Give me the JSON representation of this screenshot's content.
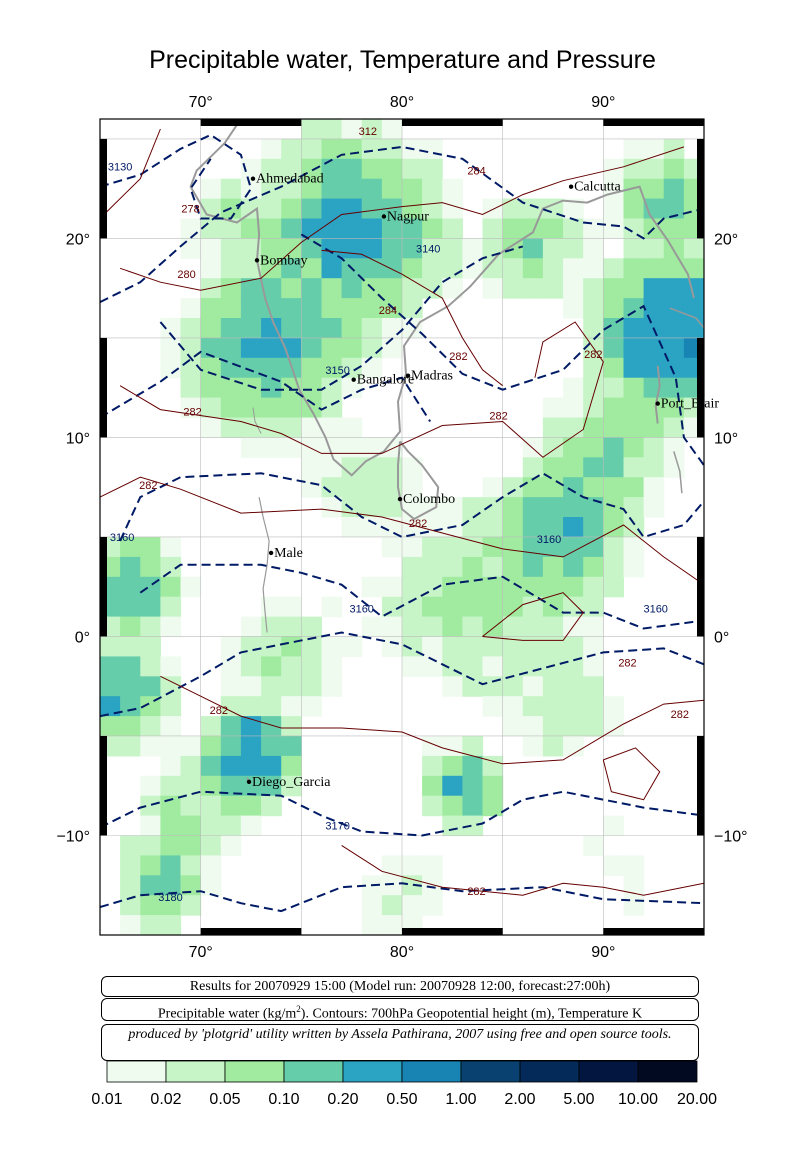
{
  "title": "Precipitable water, Temperature and Pressure",
  "map": {
    "lon_range": [
      65,
      95
    ],
    "lat_range": [
      -15,
      26
    ],
    "lon_ticks": [
      {
        "value": 70,
        "label": "70°"
      },
      {
        "value": 80,
        "label": "80°"
      },
      {
        "value": 90,
        "label": "90°"
      }
    ],
    "lat_ticks": [
      {
        "value": 20,
        "label": "20°"
      },
      {
        "value": 10,
        "label": "10°"
      },
      {
        "value": 0,
        "label": "0°"
      },
      {
        "value": -10,
        "label": "−10°"
      }
    ],
    "cities": [
      {
        "name": "Ahmedabad",
        "lon": 72.6,
        "lat": 23.0
      },
      {
        "name": "Nagpur",
        "lon": 79.1,
        "lat": 21.1
      },
      {
        "name": "Calcutta",
        "lon": 88.4,
        "lat": 22.6
      },
      {
        "name": "Bombay",
        "lon": 72.8,
        "lat": 18.9
      },
      {
        "name": "Madras",
        "lon": 80.3,
        "lat": 13.1
      },
      {
        "name": "Bangalore",
        "lon": 77.6,
        "lat": 12.9
      },
      {
        "name": "Port_Blair",
        "lon": 92.7,
        "lat": 11.7
      },
      {
        "name": "Colombo",
        "lon": 79.9,
        "lat": 6.9
      },
      {
        "name": "Male",
        "lon": 73.5,
        "lat": 4.2
      },
      {
        "name": "Diego_Garcia",
        "lon": 72.4,
        "lat": -7.3
      }
    ],
    "contour_labels": [
      {
        "text": "3130",
        "lon": 66.0,
        "lat": 23.4,
        "kind": "height"
      },
      {
        "text": "278",
        "lon": 69.5,
        "lat": 21.3,
        "kind": "temp"
      },
      {
        "text": "280",
        "lon": 69.3,
        "lat": 18.0,
        "kind": "temp"
      },
      {
        "text": "284",
        "lon": 83.7,
        "lat": 23.2,
        "kind": "temp"
      },
      {
        "text": "3140",
        "lon": 81.3,
        "lat": 19.3,
        "kind": "height"
      },
      {
        "text": "284",
        "lon": 79.3,
        "lat": 16.2,
        "kind": "temp"
      },
      {
        "text": "3150",
        "lon": 76.8,
        "lat": 13.2,
        "kind": "height"
      },
      {
        "text": "282",
        "lon": 82.8,
        "lat": 13.9,
        "kind": "temp"
      },
      {
        "text": "282",
        "lon": 89.5,
        "lat": 14.0,
        "kind": "temp"
      },
      {
        "text": "282",
        "lon": 69.6,
        "lat": 11.1,
        "kind": "temp"
      },
      {
        "text": "282",
        "lon": 84.8,
        "lat": 10.9,
        "kind": "temp"
      },
      {
        "text": "282",
        "lon": 67.4,
        "lat": 7.4,
        "kind": "temp"
      },
      {
        "text": "3160",
        "lon": 66.1,
        "lat": 4.8,
        "kind": "height"
      },
      {
        "text": "282",
        "lon": 80.8,
        "lat": 5.5,
        "kind": "temp"
      },
      {
        "text": "3160",
        "lon": 87.3,
        "lat": 4.7,
        "kind": "height"
      },
      {
        "text": "3160",
        "lon": 78.0,
        "lat": 1.2,
        "kind": "height"
      },
      {
        "text": "3160",
        "lon": 92.6,
        "lat": 1.2,
        "kind": "height"
      },
      {
        "text": "282",
        "lon": 91.2,
        "lat": -1.5,
        "kind": "temp"
      },
      {
        "text": "282",
        "lon": 93.8,
        "lat": -4.1,
        "kind": "temp"
      },
      {
        "text": "282",
        "lon": 70.9,
        "lat": -3.9,
        "kind": "temp"
      },
      {
        "text": "3170",
        "lon": 76.8,
        "lat": -9.7,
        "kind": "height"
      },
      {
        "text": "3180",
        "lon": 68.5,
        "lat": -13.3,
        "kind": "height"
      },
      {
        "text": "282",
        "lon": 83.7,
        "lat": -13.0,
        "kind": "temp"
      },
      {
        "text": "312",
        "lon": 78.3,
        "lat": 25.2,
        "kind": "temp"
      }
    ]
  },
  "info": {
    "results": "Results for 20070929 15:00 (Model run: 20070928 12:00, forecast:27:00h)",
    "variables_prefix": "Precipitable water (kg/m",
    "variables_sup": "2",
    "variables_suffix": ").  Contours: 700hPa Geopotential height (m), Temperature K",
    "credit": "produced by 'plotgrid' utility written by Assela Pathirana, 2007 using free and open source tools."
  },
  "colorbar": {
    "colors": [
      "#f0fbf0",
      "#c8f5c8",
      "#a0eba0",
      "#66cdaa",
      "#2ba3c3",
      "#1784b4",
      "#094270",
      "#042a5a",
      "#021640",
      "#020a22"
    ],
    "labels": [
      "0.01",
      "0.02",
      "0.05",
      "0.10",
      "0.20",
      "0.50",
      "1.00",
      "2.00",
      "5.00",
      "10.00",
      "20.00"
    ]
  }
}
